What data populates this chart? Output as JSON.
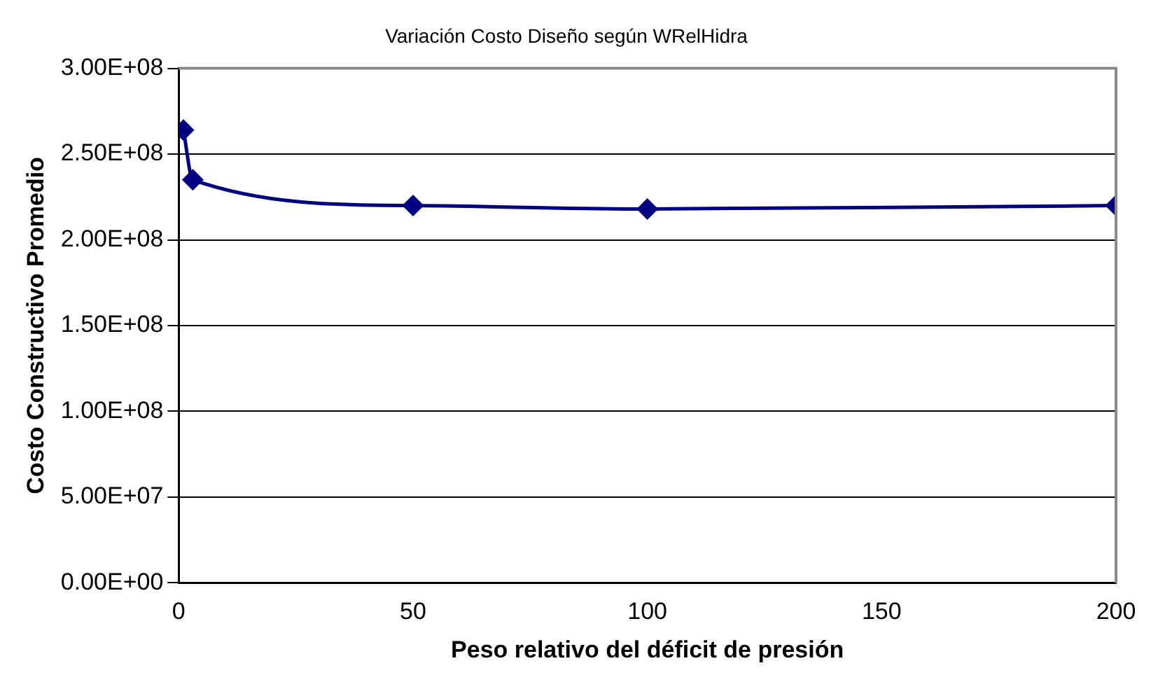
{
  "chart_data": {
    "type": "line",
    "title": "Variación Costo Diseño según WRelHidra",
    "xlabel": "Peso relativo del déficit de presión",
    "ylabel": "Costo Constructivo Promedio",
    "x": [
      1,
      3,
      50,
      100,
      200
    ],
    "series": [
      {
        "color": "#000080",
        "values": [
          264000000,
          235000000,
          220000000,
          218000000,
          220000000
        ]
      }
    ],
    "xlim": [
      0,
      200
    ],
    "xticks": [
      0,
      50,
      100,
      150,
      200
    ],
    "ylim": [
      0,
      300000000
    ],
    "yticks": [
      {
        "value": 0,
        "label": "0.00E+00"
      },
      {
        "value": 50000000,
        "label": "5.00E+07"
      },
      {
        "value": 100000000,
        "label": "1.00E+08"
      },
      {
        "value": 150000000,
        "label": "1.50E+08"
      },
      {
        "value": 200000000,
        "label": "2.00E+08"
      },
      {
        "value": 250000000,
        "label": "2.50E+08"
      },
      {
        "value": 300000000,
        "label": "3.00E+08"
      }
    ],
    "grid": "y",
    "legend": false,
    "marker": "diamond",
    "line_style": "solid"
  }
}
